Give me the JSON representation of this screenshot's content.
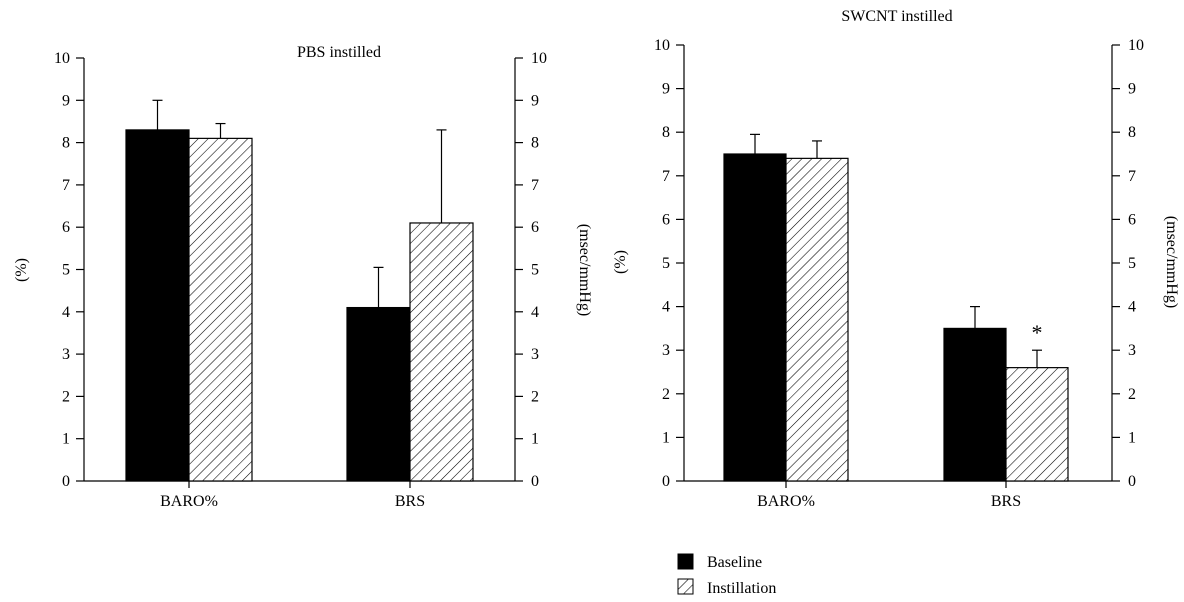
{
  "chart_data": [
    {
      "type": "bar",
      "title": "PBS instilled",
      "categories": [
        "BARO%",
        "BRS"
      ],
      "ylabel_left": "(%)",
      "ylabel_right": "(msec/mmHg)",
      "ylim": [
        0,
        10
      ],
      "yticks": [
        0,
        1,
        2,
        3,
        4,
        5,
        6,
        7,
        8,
        9,
        10
      ],
      "series": [
        {
          "name": "Baseline",
          "values": [
            8.3,
            4.1
          ],
          "errors": [
            0.7,
            0.95
          ]
        },
        {
          "name": "Instillation",
          "values": [
            8.1,
            6.1
          ],
          "errors": [
            0.35,
            2.2
          ]
        }
      ],
      "annotations": []
    },
    {
      "type": "bar",
      "title": "SWCNT instilled",
      "categories": [
        "BARO%",
        "BRS"
      ],
      "ylabel_left": "(%)",
      "ylabel_right": "(msec/mmHg)",
      "ylim": [
        0,
        10
      ],
      "yticks": [
        0,
        1,
        2,
        3,
        4,
        5,
        6,
        7,
        8,
        9,
        10
      ],
      "series": [
        {
          "name": "Baseline",
          "values": [
            7.5,
            3.5
          ],
          "errors": [
            0.45,
            0.5
          ]
        },
        {
          "name": "Instillation",
          "values": [
            7.4,
            2.6
          ],
          "errors": [
            0.4,
            0.4
          ]
        }
      ],
      "annotations": [
        {
          "series": 1,
          "category": 1,
          "text": "*"
        }
      ]
    }
  ],
  "legend": {
    "entries": [
      {
        "label": "Baseline",
        "fill": "solid",
        "color": "#000000"
      },
      {
        "label": "Instillation",
        "fill": "hatch",
        "color": "#000000"
      }
    ]
  }
}
